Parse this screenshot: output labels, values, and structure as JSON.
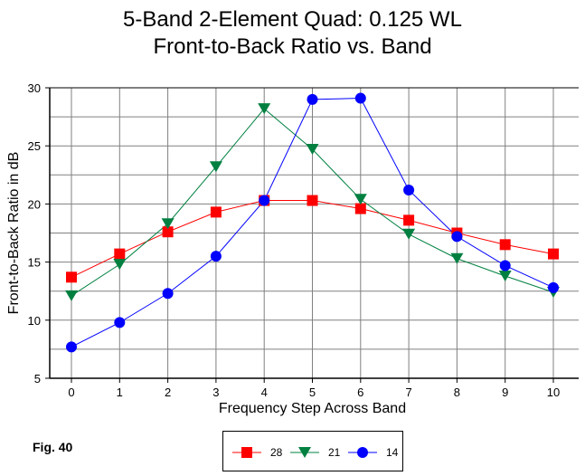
{
  "chart_data": {
    "type": "line",
    "title": "5-Band 2-Element Quad: 0.125 WL",
    "subtitle": "Front-to-Back Ratio vs. Band",
    "xlabel": "Frequency Step Across Band",
    "ylabel": "Front-to-Back Ratio in dB",
    "x": [
      0,
      1,
      2,
      3,
      4,
      5,
      6,
      7,
      8,
      9,
      10
    ],
    "xlim": [
      -0.5,
      10.5
    ],
    "ylim": [
      5,
      30
    ],
    "yticks": [
      5,
      10,
      15,
      20,
      25,
      30
    ],
    "grid": true,
    "legend_position": "bottom-center",
    "series": [
      {
        "name": "28",
        "color": "#ff0000",
        "marker": "square",
        "values": [
          13.7,
          15.7,
          17.6,
          19.3,
          20.3,
          20.3,
          19.6,
          18.6,
          17.5,
          16.5,
          15.7
        ]
      },
      {
        "name": "21",
        "color": "#008040",
        "marker": "triangle-down",
        "values": [
          12.1,
          14.8,
          18.3,
          23.2,
          28.2,
          24.7,
          20.4,
          17.4,
          15.3,
          13.8,
          12.4
        ]
      },
      {
        "name": "14",
        "color": "#0000ff",
        "marker": "circle",
        "values": [
          7.7,
          9.8,
          12.3,
          15.5,
          20.3,
          29.0,
          29.1,
          21.2,
          17.2,
          14.7,
          12.8
        ]
      }
    ]
  },
  "figure_label": "Fig. 40"
}
